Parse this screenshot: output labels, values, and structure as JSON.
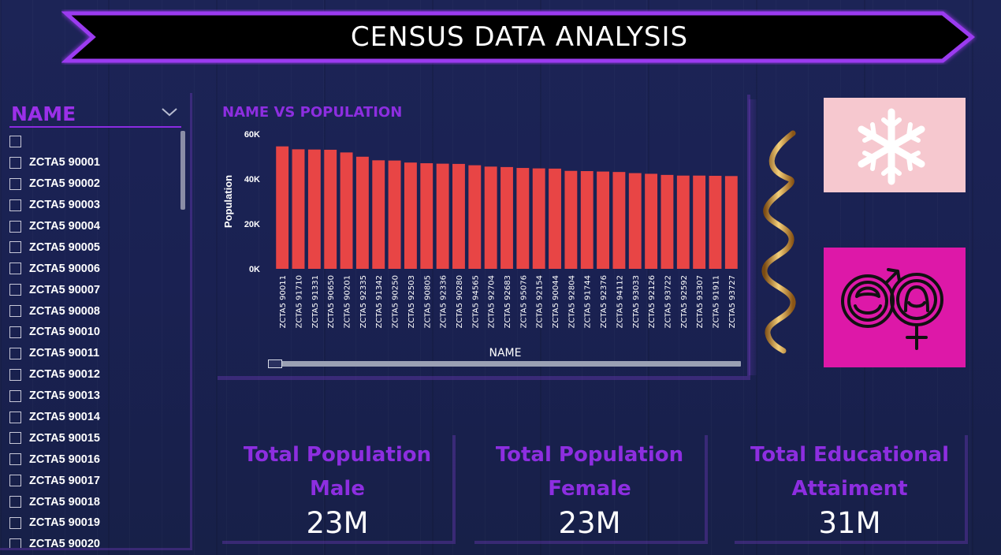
{
  "header": {
    "title": "CENSUS DATA ANALYSIS"
  },
  "slicer": {
    "title": "NAME",
    "items": [
      "",
      "ZCTA5 90001",
      "ZCTA5 90002",
      "ZCTA5 90003",
      "ZCTA5 90004",
      "ZCTA5 90005",
      "ZCTA5 90006",
      "ZCTA5 90007",
      "ZCTA5 90008",
      "ZCTA5 90010",
      "ZCTA5 90011",
      "ZCTA5 90012",
      "ZCTA5 90013",
      "ZCTA5 90014",
      "ZCTA5 90015",
      "ZCTA5 90016",
      "ZCTA5 90017",
      "ZCTA5 90018",
      "ZCTA5 90019",
      "ZCTA5 90020"
    ]
  },
  "chart_data": {
    "type": "bar",
    "title": "NAME VS POPULATION",
    "xlabel": "NAME",
    "ylabel": "Population",
    "ylim": [
      0,
      60000
    ],
    "yticks": [
      "0K",
      "20K",
      "40K",
      "60K"
    ],
    "bar_color": "#e84545",
    "categories": [
      "ZCTA5 90011",
      "ZCTA5 91710",
      "ZCTA5 91331",
      "ZCTA5 90650",
      "ZCTA5 90201",
      "ZCTA5 92335",
      "ZCTA5 91342",
      "ZCTA5 90250",
      "ZCTA5 92503",
      "ZCTA5 90805",
      "ZCTA5 92336",
      "ZCTA5 90280",
      "ZCTA5 94565",
      "ZCTA5 92704",
      "ZCTA5 92683",
      "ZCTA5 95076",
      "ZCTA5 92154",
      "ZCTA5 90044",
      "ZCTA5 92804",
      "ZCTA5 91744",
      "ZCTA5 92376",
      "ZCTA5 94112",
      "ZCTA5 93033",
      "ZCTA5 92126",
      "ZCTA5 93722",
      "ZCTA5 92592",
      "ZCTA5 93307",
      "ZCTA5 91911",
      "ZCTA5 93727"
    ],
    "values": [
      54500,
      53200,
      53100,
      53000,
      51800,
      49900,
      48300,
      48200,
      47300,
      47000,
      46800,
      46700,
      46100,
      45500,
      45300,
      44900,
      44700,
      44600,
      43600,
      43500,
      43300,
      43100,
      42600,
      42300,
      41800,
      41500,
      41500,
      41400,
      41300
    ]
  },
  "kpis": [
    {
      "label_line1": "Total Population",
      "label_line2": "Male",
      "value": "23M"
    },
    {
      "label_line1": "Total Population",
      "label_line2": "Female",
      "value": "23M"
    },
    {
      "label_line1": "Total Educational",
      "label_line2": "Attaiment",
      "value": "31M"
    }
  ],
  "icons": {
    "slicer_chevron": "chevron-down-icon",
    "snowflake_card": "snowflake-icon",
    "gender_card": "gender-male-female-icon",
    "ribbon": "ribbon-decoration"
  },
  "colors": {
    "background": "#1a2050",
    "accent_purple": "#8d2ee0",
    "bar_red": "#e84545",
    "card_pink": "#f6c8cf",
    "card_magenta": "#dd18a8"
  }
}
